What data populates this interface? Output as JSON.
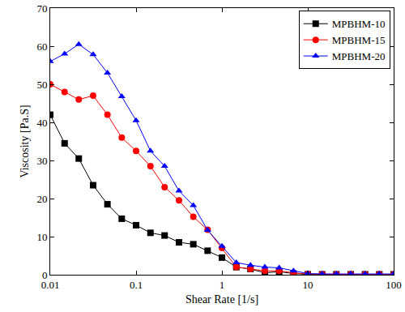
{
  "chart_data": {
    "type": "line",
    "x_label": "Shear Rate [1/s]",
    "y_label": "Viscosity [Pa.S]",
    "log": "x",
    "grid": false,
    "legend": "top right",
    "xlim": [
      0.01,
      100
    ],
    "xticks": [
      0.01,
      0.1,
      1,
      10,
      100
    ],
    "ylim": [
      0,
      70
    ],
    "yticks": [
      0,
      10,
      20,
      30,
      40,
      50,
      60,
      70
    ],
    "x": [
      0.01,
      0.0147,
      0.0215,
      0.0316,
      0.0464,
      0.0681,
      0.1,
      0.147,
      0.215,
      0.316,
      0.464,
      0.681,
      1,
      1.47,
      2.15,
      3.16,
      4.64,
      6.81,
      10,
      14.7,
      21.5,
      31.6,
      46.4,
      68.1,
      100
    ],
    "series": [
      {
        "name": "MPBHM-10",
        "color": "#000000",
        "marker": "square",
        "line_style": "solid",
        "values": [
          42,
          34.5,
          30.5,
          23.5,
          18.5,
          14.7,
          13,
          11,
          10.3,
          8.5,
          8,
          6.3,
          4.5,
          2,
          1.5,
          0.5,
          0.8,
          0.3,
          0.1,
          0.1,
          0.1,
          0.1,
          0.1,
          0.1,
          0.1
        ]
      },
      {
        "name": "MPBHM-15",
        "color": "#ff0000",
        "marker": "circle",
        "line_style": "solid",
        "values": [
          50,
          48,
          46,
          47,
          42,
          36,
          32.5,
          28.5,
          23,
          19.5,
          15.2,
          11.8,
          7,
          2,
          1.5,
          1,
          1,
          0.5,
          0.2,
          0.1,
          0.1,
          0.1,
          0.1,
          0.1,
          0.1
        ]
      },
      {
        "name": "MPBHM-20",
        "color": "#0000ff",
        "marker": "triangle",
        "line_style": "solid",
        "values": [
          56,
          58,
          60.5,
          57.8,
          53,
          46.8,
          40.5,
          32.5,
          28.5,
          22,
          18.2,
          11.7,
          7.5,
          3.2,
          2.5,
          2,
          1.8,
          1,
          0.3,
          0.2,
          0.2,
          0.2,
          0.2,
          0.2,
          0.2
        ]
      }
    ]
  }
}
